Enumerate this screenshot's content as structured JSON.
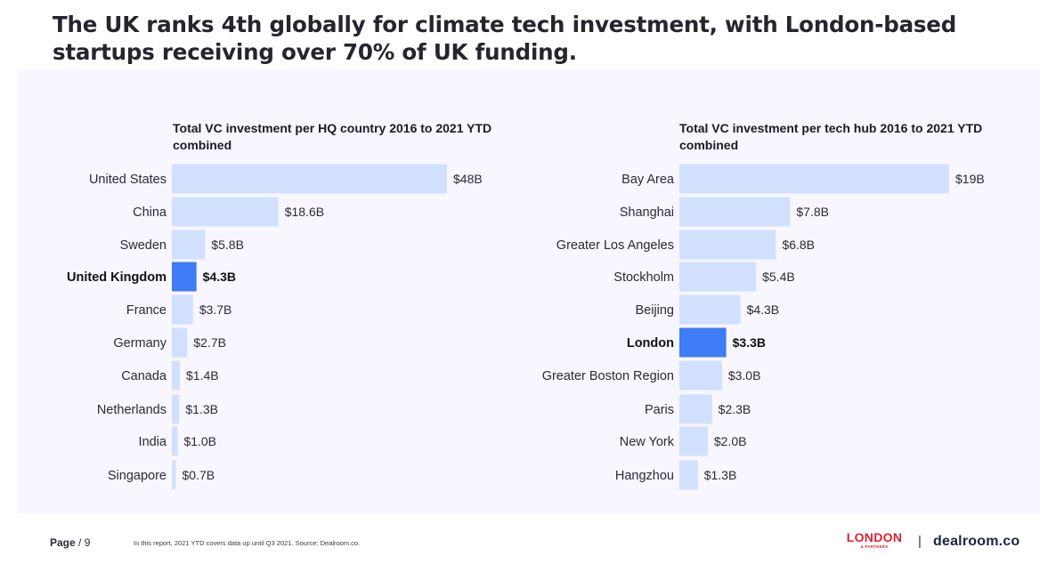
{
  "headline": "The UK ranks 4th globally for climate tech investment, with London-based startups receiving over 70% of UK funding.",
  "colors": {
    "bar": "#d1e1fd",
    "highlight_bar": "#3f7cf5",
    "panel_bg": "#f8f6fe",
    "text": "#2b2b35",
    "london_logo": "#e0202f"
  },
  "chart_data": [
    {
      "type": "bar",
      "orientation": "horizontal",
      "title": "Total VC investment per HQ country 2016 to 2021 YTD combined",
      "unit": "$B",
      "categories": [
        "United States",
        "China",
        "Sweden",
        "United Kingdom",
        "France",
        "Germany",
        "Canada",
        "Netherlands",
        "India",
        "Singapore"
      ],
      "values": [
        48,
        18.6,
        5.8,
        4.3,
        3.7,
        2.7,
        1.4,
        1.3,
        1.0,
        0.7
      ],
      "labels": [
        "$48B",
        "$18.6B",
        "$5.8B",
        "$4.3B",
        "$3.7B",
        "$2.7B",
        "$1.4B",
        "$1.3B",
        "$1.0B",
        "$0.7B"
      ],
      "highlight": "United Kingdom",
      "xlim": [
        0,
        48
      ],
      "grid": false
    },
    {
      "type": "bar",
      "orientation": "horizontal",
      "title": "Total VC investment per tech hub 2016 to 2021 YTD combined",
      "unit": "$B",
      "categories": [
        "Bay Area",
        "Shanghai",
        "Greater Los Angeles",
        "Stockholm",
        "Beijing",
        "London",
        "Greater Boston Region",
        "Paris",
        "New York",
        "Hangzhou"
      ],
      "values": [
        19,
        7.8,
        6.8,
        5.4,
        4.3,
        3.3,
        3.0,
        2.3,
        2.0,
        1.3
      ],
      "labels": [
        "$19B",
        "$7.8B",
        "$6.8B",
        "$5.4B",
        "$4.3B",
        "$3.3B",
        "$3.0B",
        "$2.3B",
        "$2.0B",
        "$1.3B"
      ],
      "highlight": "London",
      "xlim": [
        0,
        19
      ],
      "grid": false
    }
  ],
  "footer": {
    "page_label": "Page",
    "page_number": "/ 9",
    "note": "In this report, 2021 YTD covers data up until Q3 2021. Source: Dealroom.co.",
    "logo_london": "LONDON",
    "logo_london_sub": "& PARTNERS",
    "separator": "|",
    "logo_dealroom": "dealroom.co"
  }
}
